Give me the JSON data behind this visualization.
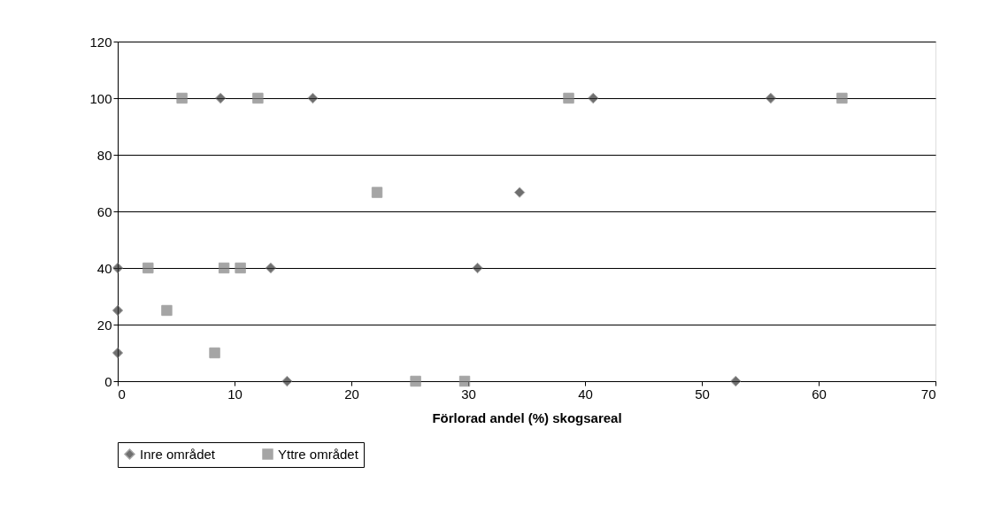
{
  "chart_data": {
    "type": "scatter",
    "xlabel": "Förlorad andel (%) skogsareal",
    "xlim": [
      0,
      70
    ],
    "xticks": [
      0,
      10,
      20,
      30,
      40,
      50,
      60,
      70
    ],
    "ylim": [
      0,
      120
    ],
    "yticks": [
      0,
      20,
      40,
      60,
      80,
      100,
      120
    ],
    "grid": "y",
    "legend": "bottom",
    "series": [
      {
        "name": "Inre området",
        "color": "#333333",
        "marker": "diamond",
        "x": [
          0,
          0,
          0,
          8.8,
          16.7,
          13.1,
          14.5,
          30.8,
          34.4,
          40.7,
          55.9,
          52.9
        ],
        "values": [
          40,
          25,
          10,
          100,
          100,
          40,
          0,
          40,
          66.7,
          100,
          100,
          0
        ]
      },
      {
        "name": "Yttre området",
        "color": "#808080",
        "marker": "square",
        "x": [
          5.5,
          12.0,
          38.6,
          62.0,
          22.2,
          2.6,
          9.1,
          10.5,
          4.2,
          8.3,
          25.5,
          29.7
        ],
        "values": [
          100,
          100,
          100,
          100,
          66.7,
          40,
          40,
          40,
          25,
          10,
          0,
          0
        ]
      }
    ]
  }
}
